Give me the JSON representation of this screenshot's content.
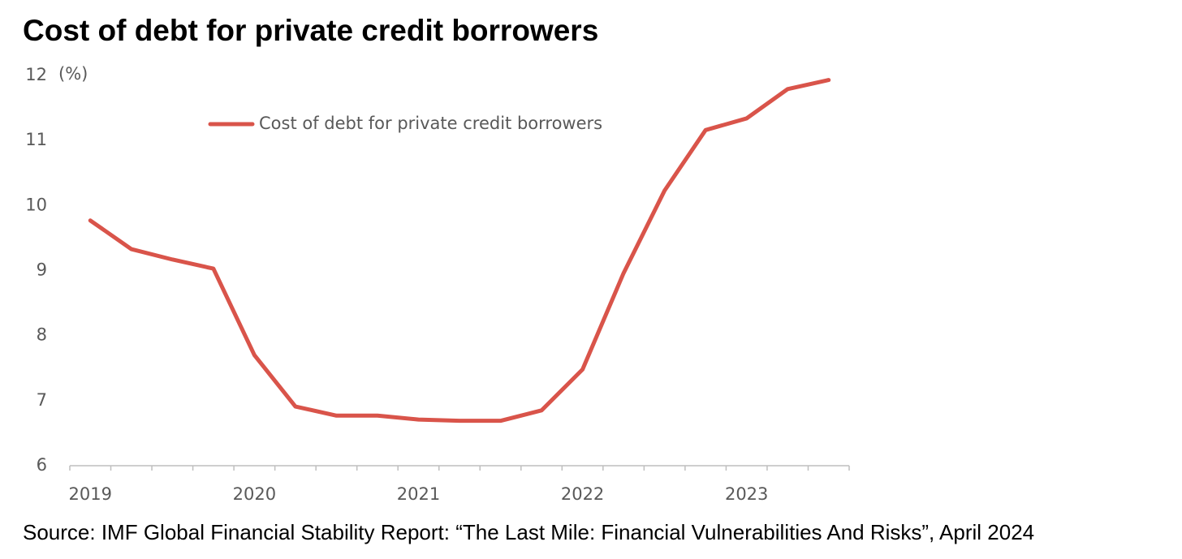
{
  "chart_data": {
    "type": "line",
    "title": "Cost of debt for private credit borrowers",
    "y_unit": "(%)",
    "source": "Source: IMF Global Financial Stability Report: “The Last Mile: Financial Vulnerabilities And Risks”, April 2024",
    "categories": [
      "2019",
      null,
      null,
      null,
      "2020",
      null,
      null,
      null,
      "2021",
      null,
      null,
      null,
      "2022",
      null,
      null,
      null,
      "2023",
      null,
      null
    ],
    "series": [
      {
        "name": "Cost of debt for private credit borrowers",
        "color": "#d9544a",
        "values": [
          9.77,
          9.33,
          9.17,
          9.03,
          7.7,
          6.91,
          6.77,
          6.77,
          6.71,
          6.69,
          6.69,
          6.85,
          7.48,
          8.96,
          10.23,
          11.16,
          11.34,
          11.79,
          11.93
        ]
      }
    ],
    "ylim": [
      6,
      12
    ],
    "yticks": [
      6,
      7,
      8,
      9,
      10,
      11,
      12
    ],
    "grid": false
  }
}
